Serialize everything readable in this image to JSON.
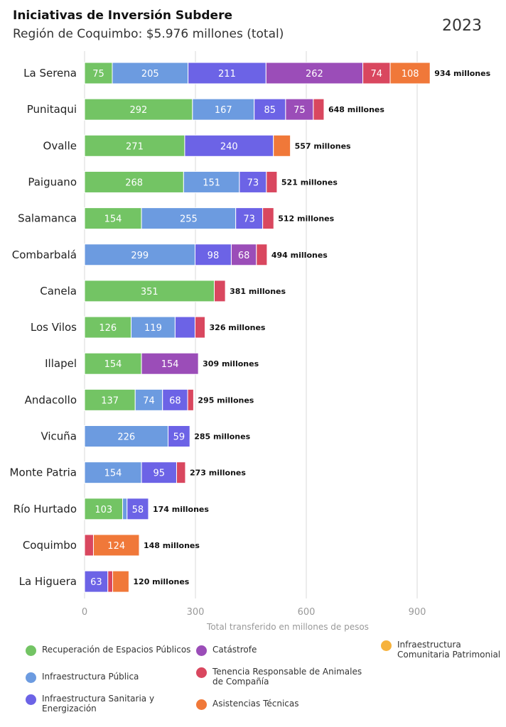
{
  "header": {
    "title": "Iniciativas de Inversión Subdere",
    "subtitle": "Región de Coquimbo: $5.976 millones (total)",
    "year": "2023"
  },
  "chart_data": {
    "type": "bar",
    "orientation": "horizontal",
    "stacked": true,
    "xlabel": "Total transferido en millones de pesos",
    "xlim": [
      0,
      1000
    ],
    "xticks": [
      0,
      300,
      600,
      900
    ],
    "grid": true,
    "legend_position": "bottom",
    "total_suffix": "millones",
    "categories": [
      "La Serena",
      "Punitaqui",
      "Ovalle",
      "Paiguano",
      "Salamanca",
      "Combarbalá",
      "Canela",
      "Los Vilos",
      "Illapel",
      "Andacollo",
      "Vicuña",
      "Monte Patria",
      "Río Hurtado",
      "Coquimbo",
      "La Higuera"
    ],
    "totals": [
      934,
      648,
      557,
      521,
      512,
      494,
      381,
      326,
      309,
      295,
      285,
      273,
      174,
      148,
      120
    ],
    "series": [
      {
        "name": "Recuperación de Espacios Públicos",
        "color": "#73C464",
        "values": [
          75,
          292,
          271,
          268,
          154,
          0,
          351,
          126,
          154,
          137,
          0,
          0,
          103,
          0,
          0
        ]
      },
      {
        "name": "Infraestructura Pública",
        "color": "#6C9BE0",
        "values": [
          205,
          167,
          0,
          151,
          255,
          299,
          0,
          119,
          0,
          74,
          226,
          154,
          12,
          0,
          0
        ]
      },
      {
        "name": "Infraestructura Sanitaria y Energización",
        "color": "#6C63E6",
        "values": [
          211,
          85,
          240,
          73,
          73,
          98,
          0,
          54,
          0,
          68,
          59,
          95,
          58,
          0,
          63
        ]
      },
      {
        "name": "Catástrofe",
        "color": "#9B4DB8",
        "values": [
          262,
          75,
          0,
          0,
          0,
          68,
          0,
          0,
          154,
          0,
          0,
          0,
          0,
          0,
          0
        ]
      },
      {
        "name": "Tenencia Responsable de Animales de Compañía",
        "color": "#D9475F",
        "values": [
          74,
          29,
          0,
          29,
          30,
          29,
          30,
          27,
          0,
          16,
          0,
          24,
          0,
          24,
          13
        ]
      },
      {
        "name": "Asistencias Técnicas",
        "color": "#F07839",
        "values": [
          108,
          0,
          46,
          0,
          0,
          0,
          0,
          0,
          0,
          0,
          0,
          0,
          0,
          124,
          44
        ]
      },
      {
        "name": "Infraestructura Comunitaria Patrimonial",
        "color": "#F6B23C",
        "values": [
          0,
          0,
          0,
          0,
          0,
          0,
          0,
          0,
          0,
          0,
          0,
          0,
          0,
          0,
          0
        ]
      }
    ],
    "value_labels": [
      [
        "75",
        "205",
        "211",
        "262",
        "74",
        "108"
      ],
      [
        "292",
        "167",
        "85",
        "75",
        "",
        ""
      ],
      [
        "271",
        "",
        "240",
        "",
        "",
        ""
      ],
      [
        "268",
        "151",
        "73",
        "",
        "",
        ""
      ],
      [
        "154",
        "255",
        "73",
        "",
        "",
        ""
      ],
      [
        "",
        "299",
        "98",
        "68",
        "",
        ""
      ],
      [
        "351",
        "",
        "",
        "",
        "",
        ""
      ],
      [
        "126",
        "119",
        "",
        "",
        "",
        ""
      ],
      [
        "154",
        "",
        "",
        "154",
        "",
        ""
      ],
      [
        "137",
        "74",
        "68",
        "",
        "",
        ""
      ],
      [
        "",
        "226",
        "59",
        "",
        "",
        ""
      ],
      [
        "",
        "154",
        "95",
        "",
        "",
        ""
      ],
      [
        "103",
        "",
        "58",
        "",
        "",
        ""
      ],
      [
        "",
        "",
        "",
        "",
        "",
        "124"
      ],
      [
        "",
        "",
        "63",
        "",
        "",
        ""
      ]
    ]
  },
  "legend": {
    "items": [
      {
        "label": "Recuperación de Espacios Públicos",
        "color": "#73C464"
      },
      {
        "label": "Catástrofe",
        "color": "#9B4DB8"
      },
      {
        "label": "Infraestructura Comunitaria Patrimonial",
        "color": "#F6B23C"
      },
      {
        "label": "Infraestructura Pública",
        "color": "#6C9BE0"
      },
      {
        "label": "Tenencia Responsable de Animales de Compañía",
        "color": "#D9475F"
      },
      {
        "label": "Infraestructura Sanitaria y Energización",
        "color": "#6C63E6"
      },
      {
        "label": "Asistencias Técnicas",
        "color": "#F07839"
      }
    ]
  }
}
